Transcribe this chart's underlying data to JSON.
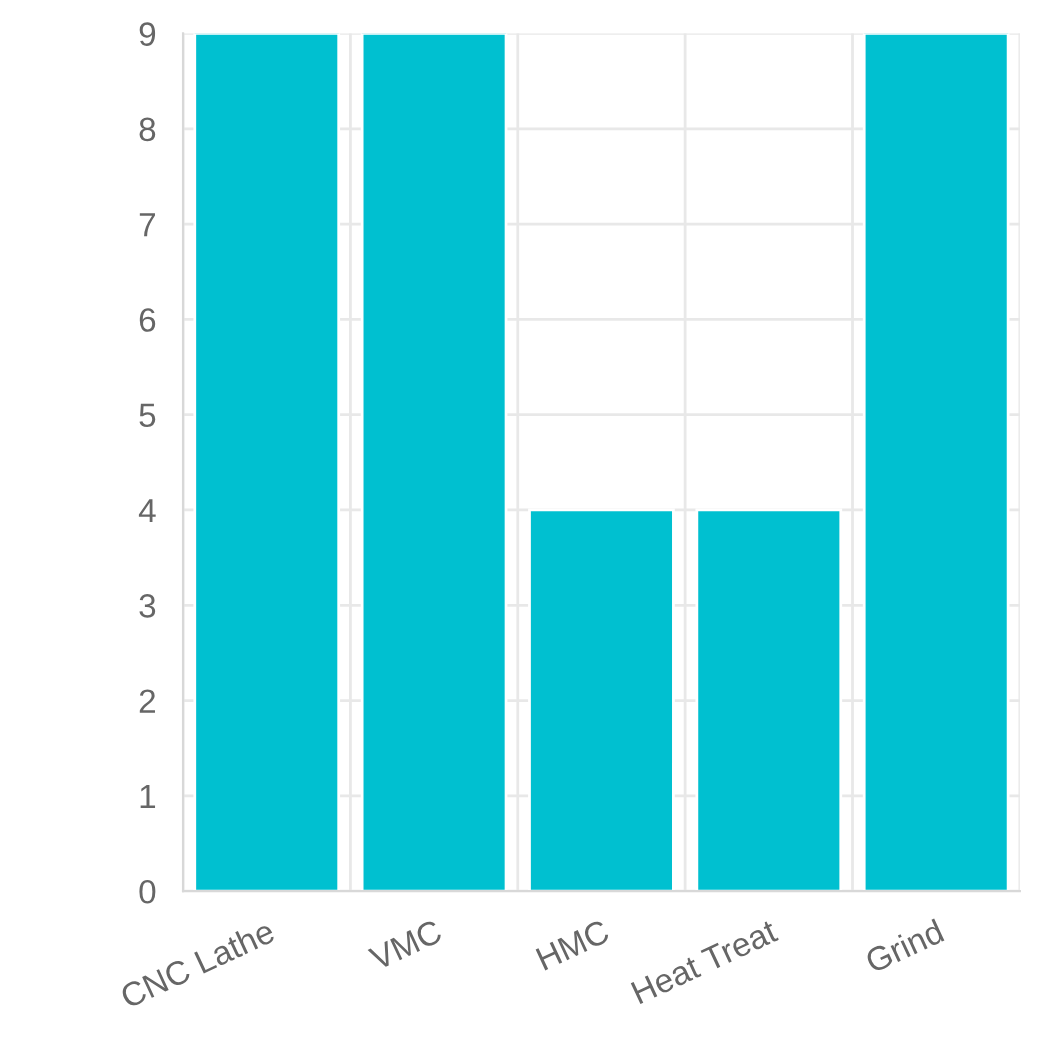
{
  "chart_data": {
    "type": "bar",
    "categories": [
      "CNC Lathe",
      "VMC",
      "HMC",
      "Heat Treat",
      "Grind"
    ],
    "values": [
      9,
      9,
      4,
      4,
      9
    ],
    "color": "#00c0d0",
    "ylim": [
      0,
      9
    ],
    "yticks": [
      0,
      1,
      2,
      3,
      4,
      5,
      6,
      7,
      8,
      9
    ],
    "grid": true
  }
}
